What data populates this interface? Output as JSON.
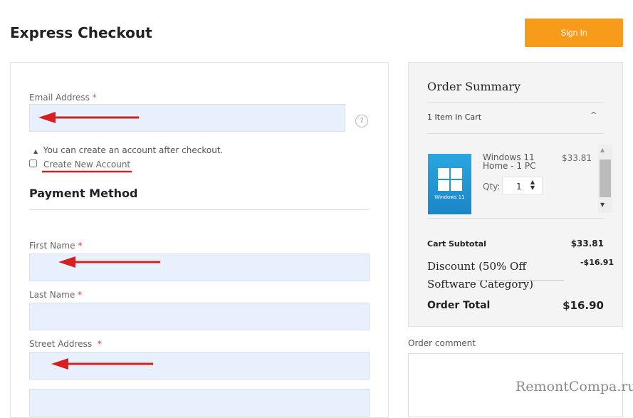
{
  "header": {
    "title": "Express Checkout",
    "sign_in": "Sign In"
  },
  "form": {
    "email_label": "Email Address",
    "required_mark": "*",
    "email_hint": "You can create an account after checkout.",
    "create_account": "Create New Account",
    "payment_method": "Payment Method",
    "first_name_label": "First Name",
    "last_name_label": "Last Name",
    "street_label": "Street Address"
  },
  "summary": {
    "title": "Order Summary",
    "items_in_cart": "1 Item In Cart",
    "item": {
      "name": "Windows 11 Home - 1 PC",
      "price": "$33.81",
      "qty_label": "Qty:",
      "qty": "1",
      "image_text": "Windows 11"
    },
    "subtotal_label": "Cart Subtotal",
    "subtotal": "$33.81",
    "discount_label": "Discount (50% Off Software Category)",
    "discount": "-$16.91",
    "total_label": "Order Total",
    "total": "$16.90"
  },
  "comment": {
    "label": "Order comment"
  },
  "watermark": "RemontCompa.ru",
  "colors": {
    "accent": "#f89b1a",
    "input_bg": "#e8f0fe",
    "arrow": "#d81e1e"
  }
}
